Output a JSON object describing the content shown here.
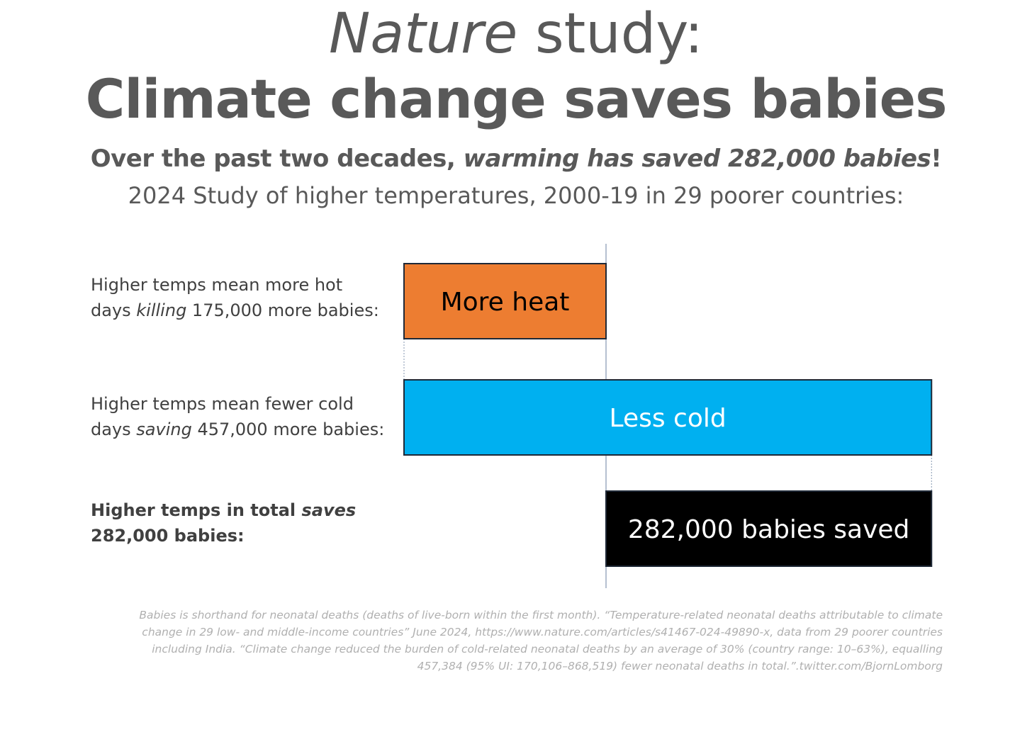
{
  "header": {
    "title_italic": "Nature",
    "title_rest": " study:",
    "title_main": "Climate change saves babies",
    "subtitle_start": "Over the past two decades, ",
    "subtitle_italic": "warming has saved 282,000 babies",
    "subtitle_end": "!",
    "subtitle_2": "2024 Study of higher temperatures, 2000-19 in 29 poorer countries:"
  },
  "rows": [
    {
      "line1": "Higher temps mean more hot",
      "line2_pre": "days ",
      "line2_italic": "killing",
      "line2_post": " 175,000 more babies:"
    },
    {
      "line1": "Higher temps mean fewer cold",
      "line2_pre": "days ",
      "line2_italic": "saving",
      "line2_post": " 457,000 more babies:"
    },
    {
      "line1_pre": "Higher temps in total ",
      "line1_italic": "saves",
      "line2": "282,000 babies:"
    }
  ],
  "chart_data": {
    "type": "bar",
    "orientation": "horizontal-waterfall",
    "categories": [
      "More heat",
      "Less cold",
      "282,000 babies saved"
    ],
    "values": [
      -175000,
      457000,
      282000
    ],
    "bar_labels": [
      "More heat",
      "Less cold",
      "282,000 babies saved"
    ],
    "colors": [
      "#ED7D31",
      "#00B0F0",
      "#000000"
    ],
    "label_colors": [
      "#000000",
      "#ffffff",
      "#ffffff"
    ],
    "baseline": 0
  },
  "footnote": {
    "lines": [
      "Babies is shorthand for neonatal deaths (deaths of live-born within the first month). “Temperature-related neonatal deaths attributable to climate",
      "change in 29 low- and middle-income countries” June 2024, https://www.nature.com/articles/s41467-024-49890-x, data from 29 poorer countries",
      "including India. “Climate change reduced the burden of cold-related neonatal deaths by an average of 30% (country range: 10–63%), equalling",
      "457,384 (95% UI: 170,106–868,519) fewer neonatal deaths in total.”.twitter.com/BjornLomborg"
    ]
  }
}
